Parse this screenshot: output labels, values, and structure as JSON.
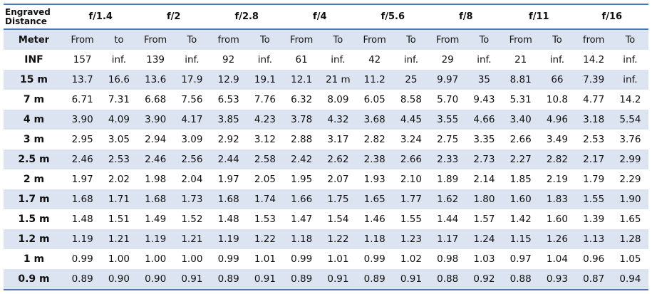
{
  "header": {
    "corner": [
      "Engraved",
      "Distance"
    ],
    "apertures": [
      "f/1.4",
      "f/2",
      "f/2.8",
      "f/4",
      "f/5.6",
      "f/8",
      "f/11",
      "f/16"
    ]
  },
  "subheader": {
    "label": "Meter",
    "pairs": [
      [
        "From",
        "to"
      ],
      [
        "From",
        "To"
      ],
      [
        "from",
        "To"
      ],
      [
        "From",
        "To"
      ],
      [
        "From",
        "To"
      ],
      [
        "From",
        "To"
      ],
      [
        "From",
        "To"
      ],
      [
        "from",
        "To"
      ]
    ]
  },
  "rows": [
    {
      "distance": "INF",
      "values": [
        "157",
        "inf.",
        "139",
        "inf.",
        "92",
        "inf.",
        "61",
        "inf.",
        "42",
        "inf.",
        "29",
        "inf.",
        "21",
        "inf.",
        "14.2",
        "inf."
      ]
    },
    {
      "distance": "15 m",
      "values": [
        "13.7",
        "16.6",
        "13.6",
        "17.9",
        "12.9",
        "19.1",
        "12.1",
        "21 m",
        "11.2",
        "25",
        "9.97",
        "35",
        "8.81",
        "66",
        "7.39",
        "inf."
      ]
    },
    {
      "distance": "7 m",
      "values": [
        "6.71",
        "7.31",
        "6.68",
        "7.56",
        "6.53",
        "7.76",
        "6.32",
        "8.09",
        "6.05",
        "8.58",
        "5.70",
        "9.43",
        "5.31",
        "10.8",
        "4.77",
        "14.2"
      ]
    },
    {
      "distance": "4 m",
      "values": [
        "3.90",
        "4.09",
        "3.90",
        "4.17",
        "3.85",
        "4.23",
        "3.78",
        "4.32",
        "3.68",
        "4.45",
        "3.55",
        "4.66",
        "3.40",
        "4.96",
        "3.18",
        "5.54"
      ]
    },
    {
      "distance": "3 m",
      "values": [
        "2.95",
        "3.05",
        "2.94",
        "3.09",
        "2.92",
        "3.12",
        "2.88",
        "3.17",
        "2.82",
        "3.24",
        "2.75",
        "3.35",
        "2.66",
        "3.49",
        "2.53",
        "3.76"
      ]
    },
    {
      "distance": "2.5 m",
      "values": [
        "2.46",
        "2.53",
        "2.46",
        "2.56",
        "2.44",
        "2.58",
        "2.42",
        "2.62",
        "2.38",
        "2.66",
        "2.33",
        "2.73",
        "2.27",
        "2.82",
        "2.17",
        "2.99"
      ]
    },
    {
      "distance": "2 m",
      "values": [
        "1.97",
        "2.02",
        "1.98",
        "2.04",
        "1.97",
        "2.05",
        "1.95",
        "2.07",
        "1.93",
        "2.10",
        "1.89",
        "2.14",
        "1.85",
        "2.19",
        "1.79",
        "2.29"
      ]
    },
    {
      "distance": "1.7 m",
      "values": [
        "1.68",
        "1.71",
        "1.68",
        "1.73",
        "1.68",
        "1.74",
        "1.66",
        "1.75",
        "1.65",
        "1.77",
        "1.62",
        "1.80",
        "1.60",
        "1.83",
        "1.55",
        "1.90"
      ]
    },
    {
      "distance": "1.5 m",
      "values": [
        "1.48",
        "1.51",
        "1.49",
        "1.52",
        "1.48",
        "1.53",
        "1.47",
        "1.54",
        "1.46",
        "1.55",
        "1.44",
        "1.57",
        "1.42",
        "1.60",
        "1.39",
        "1.65"
      ]
    },
    {
      "distance": "1.2 m",
      "values": [
        "1.19",
        "1.21",
        "1.19",
        "1.21",
        "1.19",
        "1.22",
        "1.18",
        "1.22",
        "1.18",
        "1.23",
        "1.17",
        "1.24",
        "1.15",
        "1.26",
        "1.13",
        "1.28"
      ]
    },
    {
      "distance": "1 m",
      "values": [
        "0.99",
        "1.00",
        "1.00",
        "1.00",
        "0.99",
        "1.01",
        "0.99",
        "1.01",
        "0.99",
        "1.02",
        "0.98",
        "1.03",
        "0.97",
        "1.04",
        "0.96",
        "1.05"
      ]
    },
    {
      "distance": "0.9 m",
      "values": [
        "0.89",
        "0.90",
        "0.90",
        "0.91",
        "0.89",
        "0.91",
        "0.89",
        "0.91",
        "0.89",
        "0.91",
        "0.88",
        "0.92",
        "0.88",
        "0.93",
        "0.87",
        "0.94"
      ]
    }
  ],
  "colors": {
    "accent": "#4a78b5",
    "stripe": "#dbe4f0"
  }
}
